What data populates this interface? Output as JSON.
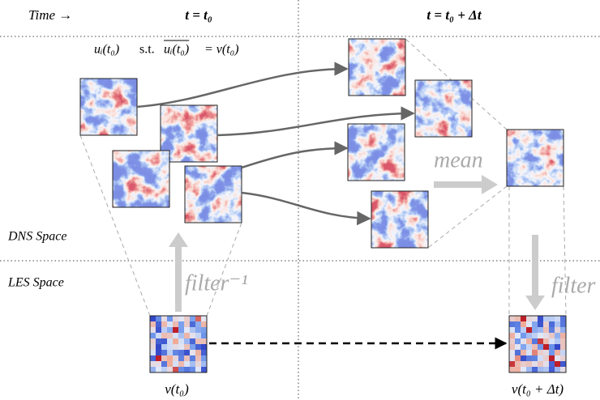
{
  "header": {
    "time": "Time →",
    "t_now": "t = t₀",
    "t_next": "t = t₀ + Δt"
  },
  "condition": {
    "lhs": "uᵢ(t₀)",
    "st": "s.t.",
    "overlined": "uᵢ(t₀)",
    "rhs": "= v(t₀)"
  },
  "spaces": {
    "dns": "DNS Space",
    "les": "LES Space"
  },
  "operations": {
    "inverse_filter": "filter⁻¹",
    "mean": "mean",
    "filter": "filter"
  },
  "states": {
    "les_now": "v(t₀)",
    "les_next": "v(t₀ + Δt)"
  }
}
